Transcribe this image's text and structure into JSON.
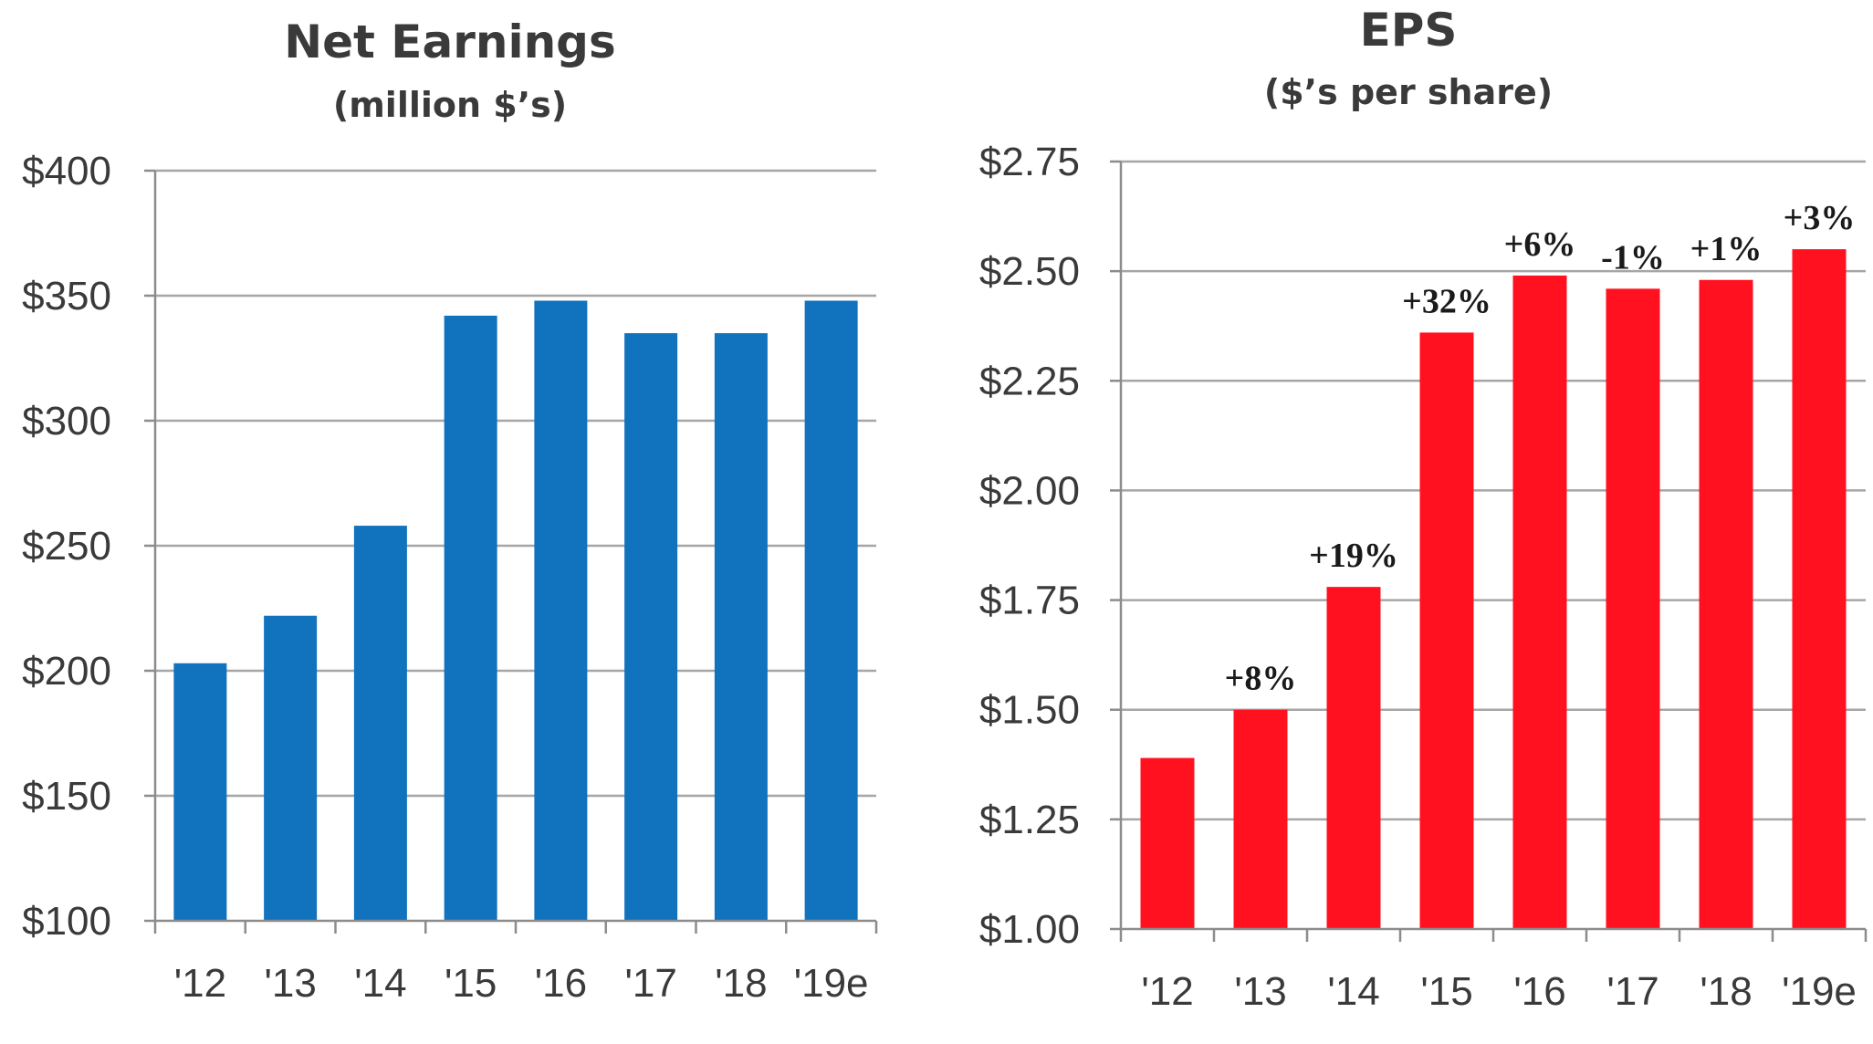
{
  "chart_data": [
    {
      "type": "bar",
      "title": "Net Earnings",
      "subtitle": "(million $’s)",
      "categories": [
        "'12",
        "'13",
        "'14",
        "'15",
        "'16",
        "'17",
        "'18",
        "'19e"
      ],
      "values": [
        203,
        222,
        258,
        342,
        348,
        335,
        335,
        348
      ],
      "ylim": [
        100,
        400
      ],
      "yticks": [
        100,
        150,
        200,
        250,
        300,
        350,
        400
      ],
      "ytick_labels": [
        "$100",
        "$150",
        "$200",
        "$250",
        "$300",
        "$350",
        "$400"
      ],
      "grid": true,
      "color": "#1172BE"
    },
    {
      "type": "bar",
      "title": "EPS",
      "subtitle": "($’s per share)",
      "categories": [
        "'12",
        "'13",
        "'14",
        "'15",
        "'16",
        "'17",
        "'18",
        "'19e"
      ],
      "values": [
        1.39,
        1.5,
        1.78,
        2.36,
        2.49,
        2.46,
        2.48,
        2.55
      ],
      "annotations": [
        "",
        "+8%",
        "+19%",
        "+32%",
        "+6%",
        "-1%",
        "+1%",
        "+3%"
      ],
      "ylim": [
        1.0,
        2.75
      ],
      "yticks": [
        1.0,
        1.25,
        1.5,
        1.75,
        2.0,
        2.25,
        2.5,
        2.75
      ],
      "ytick_labels": [
        "$1.00",
        "$1.25",
        "$1.50",
        "$1.75",
        "$2.00",
        "$2.25",
        "$2.50",
        "$2.75"
      ],
      "grid": true,
      "color": "#FF1120"
    }
  ]
}
